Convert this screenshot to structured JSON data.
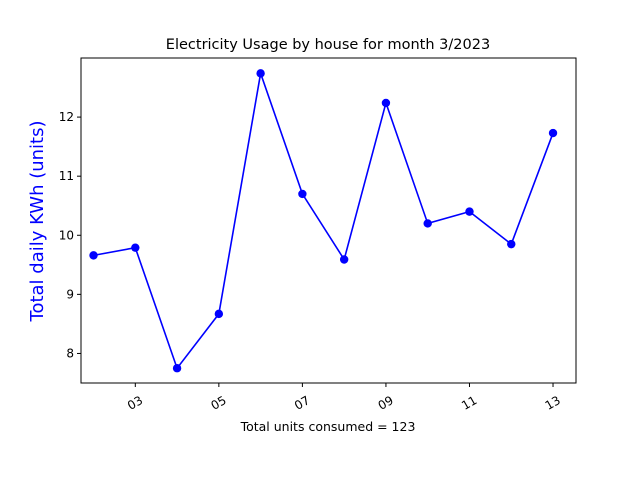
{
  "chart_data": {
    "type": "line",
    "title": "Electricity Usage by house for month 3/2023",
    "xlabel": "Total units consumed = 123",
    "ylabel": "Total daily KWh (units)",
    "ylabel_color": "#0000ff",
    "line_color": "#0000ff",
    "x": [
      2,
      3,
      4,
      5,
      6,
      7,
      8,
      9,
      10,
      11,
      12,
      13
    ],
    "y": [
      9.66,
      9.79,
      7.75,
      8.67,
      12.74,
      10.7,
      9.59,
      12.24,
      10.2,
      10.4,
      9.85,
      11.73
    ],
    "xlim": [
      1.7,
      13.55
    ],
    "ylim": [
      7.5,
      13.0
    ],
    "xticks": [
      {
        "value": 3,
        "label": "03"
      },
      {
        "value": 5,
        "label": "05"
      },
      {
        "value": 7,
        "label": "07"
      },
      {
        "value": 9,
        "label": "09"
      },
      {
        "value": 11,
        "label": "11"
      },
      {
        "value": 13,
        "label": "13"
      }
    ],
    "yticks": [
      {
        "value": 8,
        "label": "8"
      },
      {
        "value": 9,
        "label": "9"
      },
      {
        "value": 10,
        "label": "10"
      },
      {
        "value": 11,
        "label": "11"
      },
      {
        "value": 12,
        "label": "12"
      }
    ],
    "grid": false,
    "legend": "none"
  }
}
